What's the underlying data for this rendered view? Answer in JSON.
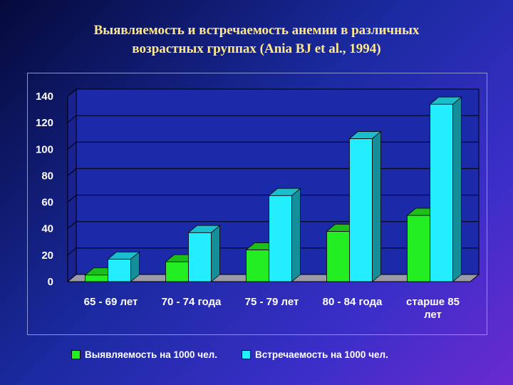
{
  "slide": {
    "title_line1": "Выявляемость и встречаемость анемии в различных",
    "title_line2": "возрастных группах (Ania BJ et al., 1994)"
  },
  "legend": {
    "items": [
      {
        "label": "Выявляемость на 1000 чел.",
        "color": "#22ee22"
      },
      {
        "label": "Встречаемость на 1000 чел.",
        "color": "#22eeff"
      }
    ]
  },
  "chart_data": {
    "type": "bar",
    "categories": [
      [
        "65 - 69 лет"
      ],
      [
        "70 - 74 года"
      ],
      [
        "75 - 79 лет"
      ],
      [
        "80 - 84 года"
      ],
      [
        "старше 85",
        "лет"
      ]
    ],
    "series": [
      {
        "name": "Выявляемость на 1000 чел.",
        "color": "#22ee22",
        "values": [
          5,
          15,
          24,
          38,
          50
        ]
      },
      {
        "name": "Встречаемость на 1000 чел.",
        "color": "#22eeff",
        "values": [
          17,
          37,
          65,
          108,
          134
        ]
      }
    ],
    "yticks": [
      0,
      20,
      40,
      60,
      80,
      100,
      120,
      140
    ],
    "ylim": [
      0,
      140
    ],
    "grid": true,
    "style": "3d-column",
    "plot_background": "#1a2aa8",
    "floor_color": "#9a9aa8",
    "legend_position": "bottom"
  }
}
